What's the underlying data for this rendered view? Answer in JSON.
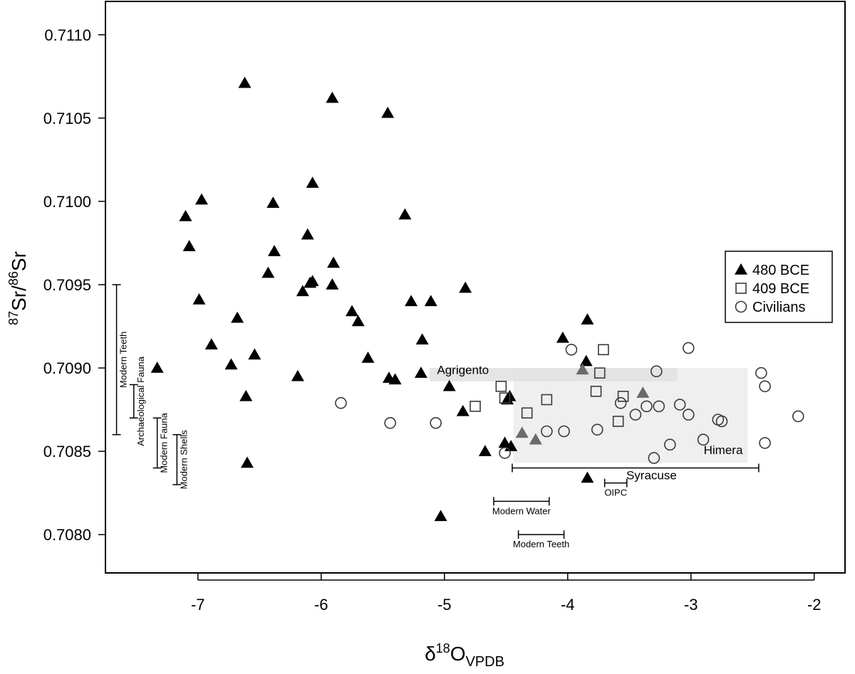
{
  "chart_data": {
    "type": "scatter",
    "xlabel_main": "δ",
    "xlabel_sup": "18",
    "xlabel_rest": "O",
    "xlabel_sub": "VPDB",
    "ylabel_sup1": "87",
    "ylabel_mid": "Sr/",
    "ylabel_sup2": "86",
    "ylabel_end": "Sr",
    "xlim": [
      -7.75,
      -1.75
    ],
    "ylim": [
      0.70777,
      0.7112
    ],
    "x_ticks": [
      -7,
      -6,
      -5,
      -4,
      -3,
      -2
    ],
    "x_tick_labels": [
      "-7",
      "-6",
      "-5",
      "-4",
      "-3",
      "-2"
    ],
    "y_ticks": [
      0.708,
      0.7085,
      0.709,
      0.7095,
      0.71,
      0.7105,
      0.711
    ],
    "y_tick_labels": [
      "0.7080",
      "0.7085",
      "0.7090",
      "0.7095",
      "0.7100",
      "0.7105",
      "0.7110"
    ],
    "legend_position": "right",
    "legend": [
      {
        "label": "480 BCE",
        "marker": "triangle"
      },
      {
        "label": "409 BCE",
        "marker": "square"
      },
      {
        "label": "Civilians",
        "marker": "circle"
      }
    ],
    "series": [
      {
        "name": "480 BCE",
        "marker": "triangle",
        "points": [
          [
            -6.62,
            0.71071
          ],
          [
            -5.91,
            0.71062
          ],
          [
            -5.46,
            0.71053
          ],
          [
            -6.97,
            0.71001
          ],
          [
            -7.1,
            0.70991
          ],
          [
            -6.39,
            0.70999
          ],
          [
            -6.07,
            0.71011
          ],
          [
            -5.32,
            0.70992
          ],
          [
            -7.07,
            0.70973
          ],
          [
            -6.11,
            0.7098
          ],
          [
            -6.38,
            0.7097
          ],
          [
            -5.9,
            0.70963
          ],
          [
            -6.43,
            0.70957
          ],
          [
            -6.07,
            0.70952
          ],
          [
            -6.09,
            0.70951
          ],
          [
            -5.91,
            0.7095
          ],
          [
            -4.83,
            0.70948
          ],
          [
            -6.15,
            0.70946
          ],
          [
            -6.99,
            0.70941
          ],
          [
            -5.27,
            0.7094
          ],
          [
            -5.11,
            0.7094
          ],
          [
            -5.75,
            0.70934
          ],
          [
            -6.68,
            0.7093
          ],
          [
            -5.7,
            0.70928
          ],
          [
            -3.84,
            0.70929
          ],
          [
            -4.04,
            0.70918
          ],
          [
            -5.18,
            0.70917
          ],
          [
            -6.89,
            0.70914
          ],
          [
            -5.62,
            0.70906
          ],
          [
            -6.54,
            0.70908
          ],
          [
            -3.85,
            0.70904
          ],
          [
            -6.73,
            0.70902
          ],
          [
            -7.33,
            0.709
          ],
          [
            -5.19,
            0.70897
          ],
          [
            -6.19,
            0.70895
          ],
          [
            -5.45,
            0.70894
          ],
          [
            -5.4,
            0.70893
          ],
          [
            -4.96,
            0.70889
          ],
          [
            -4.47,
            0.70883
          ],
          [
            -6.61,
            0.70883
          ],
          [
            -4.49,
            0.70881
          ],
          [
            -4.85,
            0.70874
          ],
          [
            -4.51,
            0.70855
          ],
          [
            -4.46,
            0.70853
          ],
          [
            -4.67,
            0.7085
          ],
          [
            -6.6,
            0.70843
          ],
          [
            -3.84,
            0.70834
          ],
          [
            -5.03,
            0.70811
          ]
        ]
      },
      {
        "name": "480 BCE (grey)",
        "marker": "triangle-grey",
        "points": [
          [
            -3.88,
            0.70899
          ],
          [
            -3.39,
            0.70885
          ],
          [
            -4.37,
            0.70861
          ],
          [
            -4.26,
            0.70857
          ]
        ]
      },
      {
        "name": "409 BCE",
        "marker": "square",
        "points": [
          [
            -3.71,
            0.70911
          ],
          [
            -3.74,
            0.70897
          ],
          [
            -4.54,
            0.70889
          ],
          [
            -3.77,
            0.70886
          ],
          [
            -3.55,
            0.70883
          ],
          [
            -4.51,
            0.70882
          ],
          [
            -4.17,
            0.70881
          ],
          [
            -4.75,
            0.70877
          ],
          [
            -4.33,
            0.70873
          ],
          [
            -3.59,
            0.70868
          ]
        ]
      },
      {
        "name": "Civilians",
        "marker": "circle",
        "points": [
          [
            -3.97,
            0.70911
          ],
          [
            -3.02,
            0.70912
          ],
          [
            -3.28,
            0.70898
          ],
          [
            -2.43,
            0.70897
          ],
          [
            -2.4,
            0.70889
          ],
          [
            -5.84,
            0.70879
          ],
          [
            -3.57,
            0.70879
          ],
          [
            -3.09,
            0.70878
          ],
          [
            -3.26,
            0.70877
          ],
          [
            -3.36,
            0.70877
          ],
          [
            -3.45,
            0.70872
          ],
          [
            -3.02,
            0.70872
          ],
          [
            -2.13,
            0.70871
          ],
          [
            -2.78,
            0.70869
          ],
          [
            -2.75,
            0.70868
          ],
          [
            -5.44,
            0.70867
          ],
          [
            -5.07,
            0.70867
          ],
          [
            -3.76,
            0.70863
          ],
          [
            -4.17,
            0.70862
          ],
          [
            -4.03,
            0.70862
          ],
          [
            -2.9,
            0.70857
          ],
          [
            -2.4,
            0.70855
          ],
          [
            -3.17,
            0.70854
          ],
          [
            -4.51,
            0.70849
          ],
          [
            -3.3,
            0.70846
          ]
        ]
      }
    ],
    "regions": [
      {
        "label": "Agrigento",
        "x": [
          -5.12,
          -3.11
        ],
        "y": [
          0.70892,
          0.709
        ]
      },
      {
        "label": "Himera",
        "x": [
          -4.44,
          -2.54
        ],
        "y": [
          0.70843,
          0.709
        ]
      }
    ],
    "ranges": [
      {
        "label": "Modern Teeth",
        "orient": "vertical",
        "x": -7.66,
        "y": [
          0.7086,
          0.7095
        ]
      },
      {
        "label": "Archaeological Fauna",
        "orient": "vertical",
        "x": -7.52,
        "y": [
          0.7087,
          0.7089
        ]
      },
      {
        "label": "Modern Fauna",
        "orient": "vertical",
        "x": -7.33,
        "y": [
          0.7084,
          0.7087
        ]
      },
      {
        "label": "Modern Shells",
        "orient": "vertical",
        "x": -7.17,
        "y": [
          0.7083,
          0.7086
        ]
      },
      {
        "label": "Syracuse",
        "orient": "horizontal",
        "y": 0.7084,
        "x": [
          -4.45,
          -2.45
        ]
      },
      {
        "label": "OIPC",
        "orient": "horizontal",
        "y": 0.70831,
        "x": [
          -3.7,
          -3.52
        ]
      },
      {
        "label": "Modern Water",
        "orient": "horizontal",
        "y": 0.7082,
        "x": [
          -4.6,
          -4.15
        ]
      },
      {
        "label": "Modern Teeth",
        "orient": "horizontal",
        "y": 0.708,
        "x": [
          -4.4,
          -4.03
        ]
      }
    ]
  }
}
